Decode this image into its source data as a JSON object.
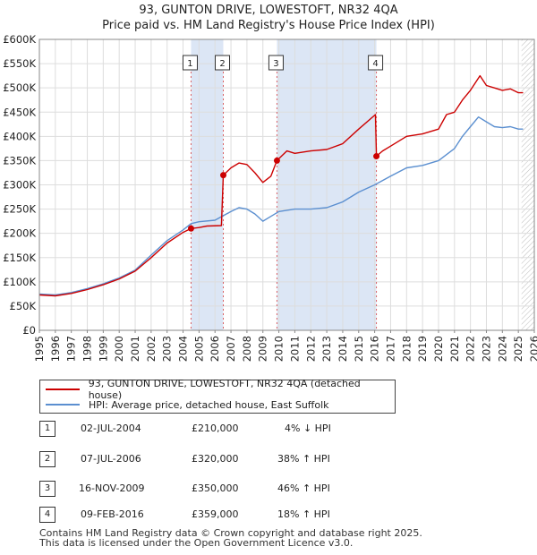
{
  "title": "93, GUNTON DRIVE, LOWESTOFT, NR32 4QA",
  "subtitle": "Price paid vs. HM Land Registry's House Price Index (HPI)",
  "colors": {
    "red": "#cc0000",
    "blue": "#5b8fd0",
    "highlight": "#dce6f5"
  },
  "chart_data": {
    "type": "line",
    "title": "93, GUNTON DRIVE, LOWESTOFT, NR32 4QA",
    "subtitle": "Price paid vs. HM Land Registry's House Price Index (HPI)",
    "xlabel": "",
    "ylabel": "",
    "xlim": [
      1995,
      2026
    ],
    "ylim": [
      0,
      600000
    ],
    "x_ticks": [
      "1995",
      "1996",
      "1997",
      "1998",
      "1999",
      "2000",
      "2001",
      "2002",
      "2003",
      "2004",
      "2005",
      "2006",
      "2007",
      "2008",
      "2009",
      "2010",
      "2011",
      "2012",
      "2013",
      "2014",
      "2015",
      "2016",
      "2017",
      "2018",
      "2019",
      "2020",
      "2021",
      "2022",
      "2023",
      "2024",
      "2025",
      "2026"
    ],
    "y_ticks": [
      {
        "value": 0,
        "label": "£0"
      },
      {
        "value": 50000,
        "label": "£50K"
      },
      {
        "value": 100000,
        "label": "£100K"
      },
      {
        "value": 150000,
        "label": "£150K"
      },
      {
        "value": 200000,
        "label": "£200K"
      },
      {
        "value": 250000,
        "label": "£250K"
      },
      {
        "value": 300000,
        "label": "£300K"
      },
      {
        "value": 350000,
        "label": "£350K"
      },
      {
        "value": 400000,
        "label": "£400K"
      },
      {
        "value": 450000,
        "label": "£450K"
      },
      {
        "value": 500000,
        "label": "£500K"
      },
      {
        "value": 550000,
        "label": "£550K"
      },
      {
        "value": 600000,
        "label": "£600K"
      }
    ],
    "grid": true,
    "shaded_ranges": [
      [
        2004.5,
        2006.52
      ],
      [
        2009.88,
        2016.11
      ]
    ],
    "data_end_hatch": [
      2025.2,
      2026
    ],
    "series": [
      {
        "name": "93, GUNTON DRIVE, LOWESTOFT, NR32 4QA (detached house)",
        "color": "#cc0000",
        "points": [
          [
            1995,
            73000
          ],
          [
            1996,
            71000
          ],
          [
            1997,
            76000
          ],
          [
            1998,
            84000
          ],
          [
            1999,
            94000
          ],
          [
            2000,
            106000
          ],
          [
            2001,
            122000
          ],
          [
            2002,
            150000
          ],
          [
            2003,
            180000
          ],
          [
            2004,
            202000
          ],
          [
            2004.5,
            210000
          ],
          [
            2005,
            212000
          ],
          [
            2005.5,
            215000
          ],
          [
            2006.4,
            216000
          ],
          [
            2006.52,
            320000
          ],
          [
            2007,
            335000
          ],
          [
            2007.5,
            345000
          ],
          [
            2008,
            342000
          ],
          [
            2008.5,
            325000
          ],
          [
            2009,
            305000
          ],
          [
            2009.5,
            318000
          ],
          [
            2009.88,
            350000
          ],
          [
            2010.5,
            370000
          ],
          [
            2011,
            365000
          ],
          [
            2012,
            370000
          ],
          [
            2013,
            373000
          ],
          [
            2014,
            385000
          ],
          [
            2015,
            415000
          ],
          [
            2016.05,
            445000
          ],
          [
            2016.11,
            359000
          ],
          [
            2016.5,
            370000
          ],
          [
            2017,
            380000
          ],
          [
            2018,
            400000
          ],
          [
            2019,
            405000
          ],
          [
            2020,
            415000
          ],
          [
            2020.5,
            445000
          ],
          [
            2021,
            450000
          ],
          [
            2021.5,
            475000
          ],
          [
            2022,
            495000
          ],
          [
            2022.6,
            525000
          ],
          [
            2023,
            505000
          ],
          [
            2023.5,
            500000
          ],
          [
            2024,
            495000
          ],
          [
            2024.5,
            498000
          ],
          [
            2025,
            490000
          ],
          [
            2025.3,
            490000
          ]
        ]
      },
      {
        "name": "HPI: Average price, detached house, East Suffolk",
        "color": "#5b8fd0",
        "points": [
          [
            1995,
            75000
          ],
          [
            1996,
            73000
          ],
          [
            1997,
            78000
          ],
          [
            1998,
            86000
          ],
          [
            1999,
            96000
          ],
          [
            2000,
            108000
          ],
          [
            2001,
            124000
          ],
          [
            2002,
            155000
          ],
          [
            2003,
            185000
          ],
          [
            2004,
            207000
          ],
          [
            2004.5,
            220000
          ],
          [
            2005,
            224000
          ],
          [
            2006,
            227000
          ],
          [
            2007,
            245000
          ],
          [
            2007.5,
            253000
          ],
          [
            2008,
            250000
          ],
          [
            2008.5,
            240000
          ],
          [
            2009,
            225000
          ],
          [
            2009.5,
            235000
          ],
          [
            2010,
            245000
          ],
          [
            2011,
            250000
          ],
          [
            2012,
            250000
          ],
          [
            2013,
            253000
          ],
          [
            2014,
            265000
          ],
          [
            2015,
            285000
          ],
          [
            2016,
            300000
          ],
          [
            2017,
            318000
          ],
          [
            2018,
            335000
          ],
          [
            2019,
            340000
          ],
          [
            2020,
            350000
          ],
          [
            2021,
            375000
          ],
          [
            2021.5,
            400000
          ],
          [
            2022,
            420000
          ],
          [
            2022.5,
            440000
          ],
          [
            2023,
            430000
          ],
          [
            2023.5,
            420000
          ],
          [
            2024,
            418000
          ],
          [
            2024.5,
            420000
          ],
          [
            2025,
            415000
          ],
          [
            2025.3,
            415000
          ]
        ]
      }
    ],
    "markers": [
      {
        "label": "1",
        "x": 2004.5,
        "y": 210000
      },
      {
        "label": "2",
        "x": 2006.52,
        "y": 320000
      },
      {
        "label": "3",
        "x": 2009.88,
        "y": 350000
      },
      {
        "label": "4",
        "x": 2016.11,
        "y": 359000
      }
    ]
  },
  "legend": [
    {
      "label": "93, GUNTON DRIVE, LOWESTOFT, NR32 4QA (detached house)",
      "color": "#cc0000"
    },
    {
      "label": "HPI: Average price, detached house, East Suffolk",
      "color": "#5b8fd0"
    }
  ],
  "transactions": [
    {
      "num": "1",
      "date": "02-JUL-2004",
      "price": "£210,000",
      "hpi": "4% ↓ HPI"
    },
    {
      "num": "2",
      "date": "07-JUL-2006",
      "price": "£320,000",
      "hpi": "38% ↑ HPI"
    },
    {
      "num": "3",
      "date": "16-NOV-2009",
      "price": "£350,000",
      "hpi": "46% ↑ HPI"
    },
    {
      "num": "4",
      "date": "09-FEB-2016",
      "price": "£359,000",
      "hpi": "18% ↑ HPI"
    }
  ],
  "footer": {
    "line1": "Contains HM Land Registry data © Crown copyright and database right 2025.",
    "line2": "This data is licensed under the Open Government Licence v3.0."
  }
}
